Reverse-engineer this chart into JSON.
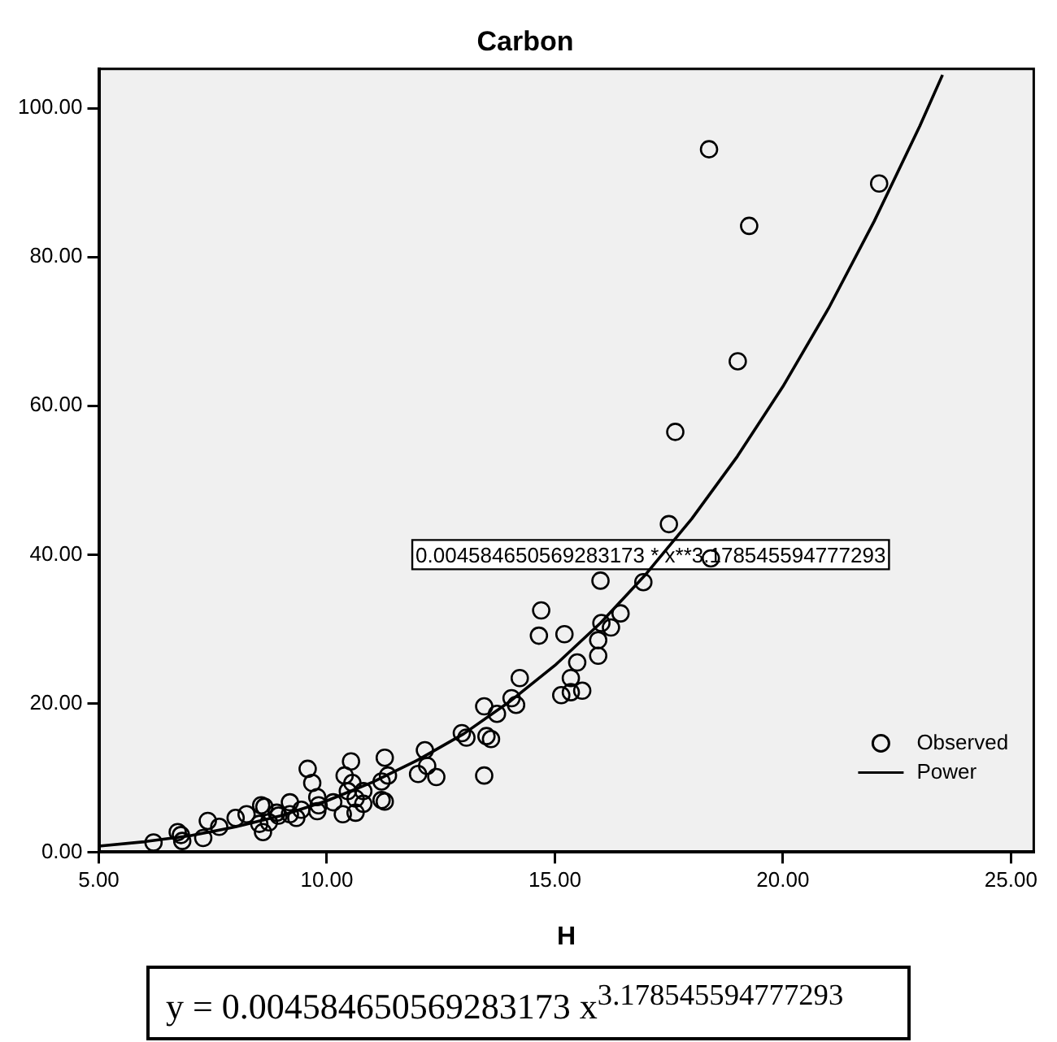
{
  "chart_data": {
    "type": "scatter",
    "title": "Carbon",
    "xlabel": "H",
    "xlim": [
      5,
      25.5
    ],
    "ylim": [
      0,
      105.3
    ],
    "xticks": [
      {
        "value": 5,
        "label": "5.00"
      },
      {
        "value": 10,
        "label": "10.00"
      },
      {
        "value": 15,
        "label": "15.00"
      },
      {
        "value": 20,
        "label": "20.00"
      },
      {
        "value": 25,
        "label": "25.00"
      }
    ],
    "yticks": [
      {
        "value": 0,
        "label": "0.00"
      },
      {
        "value": 20,
        "label": "20.00"
      },
      {
        "value": 40,
        "label": "40.00"
      },
      {
        "value": 60,
        "label": "60.00"
      },
      {
        "value": 80,
        "label": "80.00"
      },
      {
        "value": 100,
        "label": "100.00"
      }
    ],
    "grid": false,
    "legend": "bottom right",
    "marker": "circle",
    "series": [
      {
        "name": "Observed",
        "type": "scatter",
        "color": "#000000",
        "x": [
          6.2,
          6.73,
          6.8,
          6.83,
          7.29,
          7.39,
          7.64,
          8.0,
          8.24,
          8.52,
          8.6,
          8.63,
          8.73,
          8.94,
          9.19,
          9.33,
          9.44,
          9.79,
          9.82,
          10.35,
          10.63,
          10.8,
          11.27,
          8.56,
          8.9,
          9.19,
          9.58,
          9.68,
          9.79,
          10.14,
          10.39,
          10.53,
          10.46,
          10.56,
          10.63,
          10.8,
          11.2,
          11.27,
          11.2,
          11.34,
          12.0,
          12.15,
          12.2,
          12.4,
          12.96,
          13.06,
          13.45,
          13.45,
          13.5,
          13.6,
          13.73,
          14.05,
          14.15,
          14.23,
          14.65,
          14.7,
          15.21,
          15.14,
          15.35,
          15.6,
          15.35,
          15.49,
          15.95,
          15.95,
          16.23,
          16.02,
          16.44,
          16.0,
          16.94,
          17.5,
          18.42,
          17.64,
          19.01,
          19.26,
          18.38,
          22.11
        ],
        "values": [
          1.3,
          2.7,
          2.3,
          1.5,
          1.9,
          4.2,
          3.4,
          4.6,
          5.1,
          3.8,
          2.7,
          6.1,
          4.0,
          4.9,
          5.1,
          4.6,
          5.7,
          5.5,
          6.3,
          5.1,
          5.3,
          6.5,
          6.8,
          6.3,
          5.3,
          6.7,
          11.2,
          9.3,
          7.4,
          6.7,
          10.3,
          12.2,
          8.2,
          9.3,
          7.2,
          8.2,
          9.5,
          12.7,
          7.0,
          10.3,
          10.5,
          13.7,
          11.6,
          10.1,
          16.0,
          15.4,
          19.6,
          10.3,
          15.6,
          15.2,
          18.6,
          20.7,
          19.8,
          23.4,
          29.1,
          32.5,
          29.3,
          21.1,
          21.5,
          21.7,
          23.4,
          25.5,
          26.4,
          28.5,
          30.2,
          30.8,
          32.1,
          36.5,
          36.3,
          44.1,
          39.5,
          56.5,
          66.0,
          84.2,
          94.5,
          89.9
        ]
      },
      {
        "name": "Power",
        "type": "line",
        "color": "#000000",
        "marker": "none",
        "line_style": "solid",
        "x": [
          5,
          6,
          7,
          8,
          9,
          10,
          11,
          12,
          13,
          14,
          15,
          16,
          17,
          18,
          19,
          20,
          21,
          22,
          23,
          23.5
        ],
        "values": [
          0.8,
          1.4,
          2.2,
          3.4,
          4.9,
          6.9,
          9.4,
          12.4,
          15.9,
          20.2,
          25.1,
          30.8,
          37.4,
          44.8,
          53.2,
          62.6,
          73.1,
          84.8,
          97.6,
          104.5
        ]
      }
    ],
    "annotations": [
      {
        "text": "0.004584650569283173 * x**3.178545594777293",
        "x": 17.1,
        "y": 40
      },
      "y = 0.004584650569283173 x$^{3.178545594777293}$"
    ]
  }
}
